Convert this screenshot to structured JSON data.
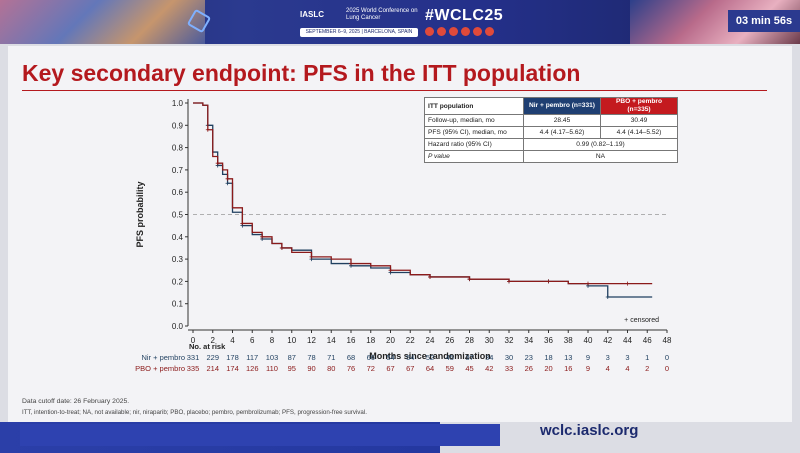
{
  "header": {
    "org": "IASLC",
    "conference": "2025 World Conference on Lung Cancer",
    "dates": "SEPTEMBER 6–9, 2025 | BARCELONA, SPAIN",
    "hashtag": "#WCLC25",
    "timer": "03 min 56s"
  },
  "slide": {
    "title": "Key secondary endpoint: PFS in the ITT population",
    "cutoff": "Data cutoff date: 26 February 2025.",
    "abbreviations": "ITT, intention-to-treat; NA, not available; nir, niraparib; PBO, placebo; pembro, pembrolizumab; PFS, progression-free survival.",
    "url": "wclc.iaslc.org"
  },
  "colors": {
    "nir": "#1f3f5f",
    "pbo": "#8b1a1a",
    "accent": "#b4191e"
  },
  "summary_table": {
    "header": [
      "ITT population",
      "Nir + pembro (n=331)",
      "PBO + pembro (n=335)"
    ],
    "rows": [
      {
        "label": "Follow-up, median, mo",
        "nir": "28.45",
        "pbo": "30.49"
      },
      {
        "label": "PFS (95% CI), median, mo",
        "nir": "4.4 (4.17–5.62)",
        "pbo": "4.4 (4.14–5.52)"
      },
      {
        "label": "Hazard ratio (95% CI)",
        "shared": "0.99 (0.82–1.19)"
      },
      {
        "label": "P value",
        "shared": "NA"
      }
    ]
  },
  "chart_data": {
    "type": "line",
    "xlabel": "Months since randomization",
    "ylabel": "PFS probability",
    "xlim": [
      0,
      48
    ],
    "ylim": [
      0,
      1.0
    ],
    "x_ticks": [
      0,
      2,
      4,
      6,
      8,
      10,
      12,
      14,
      16,
      18,
      20,
      22,
      24,
      26,
      28,
      30,
      32,
      34,
      36,
      38,
      40,
      42,
      44,
      46,
      48
    ],
    "y_ticks": [
      0.0,
      0.1,
      0.2,
      0.3,
      0.4,
      0.5,
      0.6,
      0.7,
      0.8,
      0.9,
      1.0
    ],
    "reference_line": 0.5,
    "legend": "+ censored",
    "series": [
      {
        "name": "Nir + pembro",
        "x": [
          0,
          1,
          1.5,
          2,
          2.5,
          3,
          3.5,
          4,
          5,
          6,
          7,
          8,
          9,
          10,
          12,
          14,
          16,
          18,
          20,
          22,
          24,
          26,
          28,
          30,
          32,
          34,
          36,
          38,
          40,
          41.5,
          42,
          46.5
        ],
        "y": [
          1.0,
          0.99,
          0.9,
          0.78,
          0.72,
          0.68,
          0.64,
          0.51,
          0.45,
          0.41,
          0.39,
          0.37,
          0.35,
          0.34,
          0.3,
          0.28,
          0.27,
          0.26,
          0.24,
          0.23,
          0.22,
          0.22,
          0.21,
          0.21,
          0.2,
          0.2,
          0.2,
          0.19,
          0.18,
          0.18,
          0.13,
          0.13
        ]
      },
      {
        "name": "PBO + pembro",
        "x": [
          0,
          1,
          1.5,
          2,
          2.5,
          3,
          3.5,
          4,
          5,
          6,
          7,
          8,
          9,
          10,
          12,
          14,
          16,
          18,
          20,
          22,
          24,
          26,
          28,
          30,
          32,
          34,
          36,
          38,
          40,
          42,
          44,
          46.5
        ],
        "y": [
          1.0,
          0.99,
          0.88,
          0.76,
          0.73,
          0.7,
          0.66,
          0.53,
          0.46,
          0.42,
          0.4,
          0.37,
          0.35,
          0.33,
          0.31,
          0.3,
          0.28,
          0.27,
          0.25,
          0.23,
          0.22,
          0.22,
          0.21,
          0.21,
          0.2,
          0.2,
          0.2,
          0.19,
          0.19,
          0.19,
          0.19,
          0.19
        ]
      }
    ],
    "number_at_risk": {
      "title": "No. at risk",
      "rows": [
        {
          "label": "Nir + pembro",
          "values": [
            "331",
            "229",
            "178",
            "117",
            "103",
            "87",
            "78",
            "71",
            "68",
            "66",
            "54",
            "54",
            "52",
            "45",
            "37",
            "34",
            "30",
            "23",
            "18",
            "13",
            "9",
            "3",
            "3",
            "1",
            "0"
          ]
        },
        {
          "label": "PBO + pembro",
          "values": [
            "335",
            "214",
            "174",
            "126",
            "110",
            "95",
            "90",
            "80",
            "76",
            "72",
            "67",
            "67",
            "64",
            "59",
            "45",
            "42",
            "33",
            "26",
            "20",
            "16",
            "9",
            "4",
            "4",
            "2",
            "0"
          ]
        }
      ]
    }
  }
}
